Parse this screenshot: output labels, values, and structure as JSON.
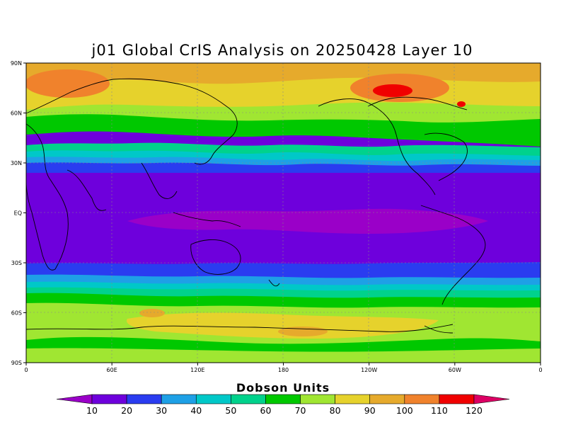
{
  "title": "j01 Global CrIS Analysis on 20250428 Layer 10",
  "map": {
    "lon_ticks": [
      "0",
      "60E",
      "120E",
      "180",
      "120W",
      "60W",
      "0"
    ],
    "lat_ticks": [
      "90N",
      "60N",
      "30N",
      "EQ",
      "30S",
      "60S",
      "90S"
    ]
  },
  "colorbar": {
    "units_label": "Dobson Units",
    "levels": [
      "10",
      "20",
      "30",
      "40",
      "50",
      "60",
      "70",
      "80",
      "90",
      "100",
      "110",
      "120"
    ],
    "colors": [
      "#9a00c8",
      "#6e00dc",
      "#2a3cf0",
      "#1ea0e6",
      "#00c8c8",
      "#00d28c",
      "#00c800",
      "#a0e632",
      "#e6d22c",
      "#e6aa2c",
      "#f0822c",
      "#f00000",
      "#dc0064"
    ]
  },
  "chart_data": {
    "type": "heatmap",
    "title": "j01 Global CrIS Analysis on 20250428 Layer 10",
    "x_range": [
      0,
      360
    ],
    "y_range": [
      -90,
      90
    ],
    "xlabel": "",
    "ylabel": "",
    "colorbar_label": "Dobson Units",
    "colorbar_levels": [
      10,
      20,
      30,
      40,
      50,
      60,
      70,
      80,
      90,
      100,
      110,
      120
    ],
    "grid": true
  }
}
